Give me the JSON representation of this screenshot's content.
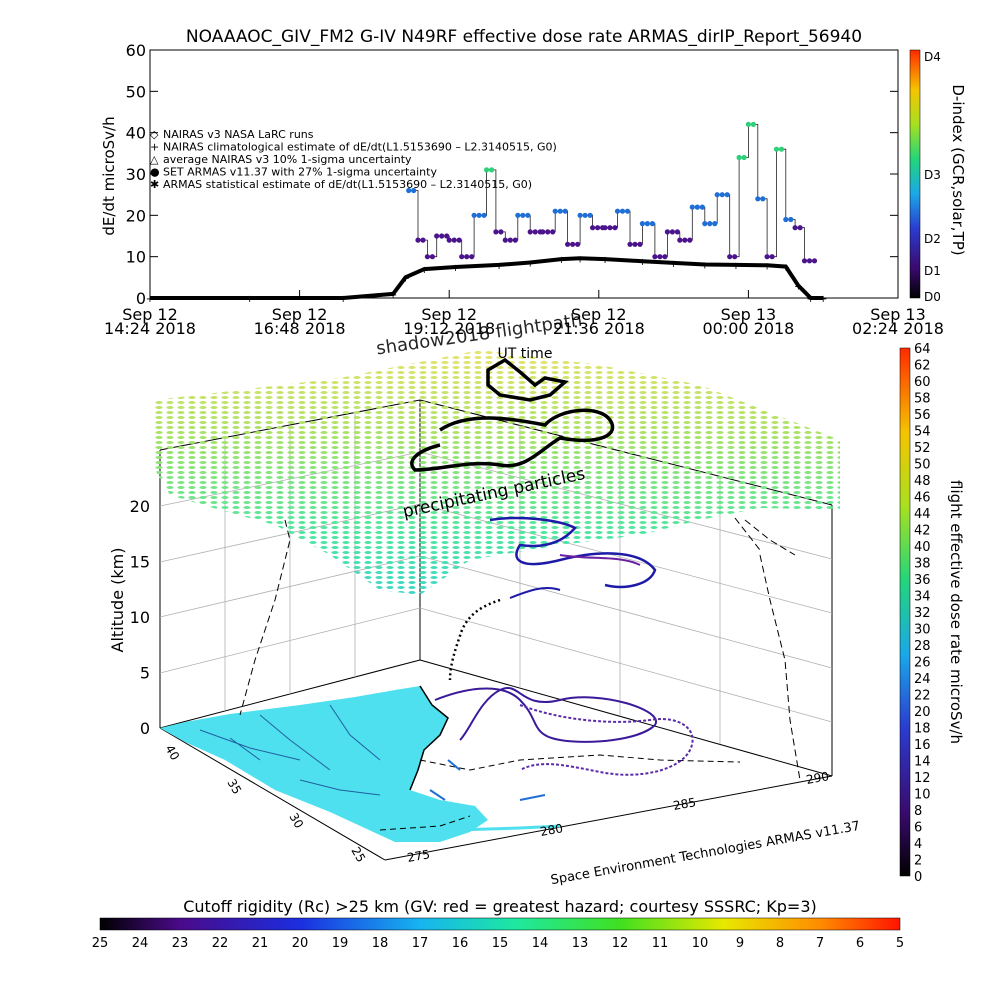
{
  "colors": {
    "trace_black": "#000000",
    "armas_blue": "#1f6fd6",
    "armas_purple": "#4b148c",
    "grid": "#b0b0b0",
    "land": "#4ee0ee"
  },
  "chart_data": [
    {
      "type": "line",
      "title": "NOAAAOC_GIV_FM2 G-IV    N49RF   effective dose rate ARMAS_dirIP_Report_56940",
      "ylabel": "dE/dt microSv/h",
      "xlabel": "",
      "ylim": [
        0,
        60
      ],
      "yticks": [
        "0",
        "10",
        "20",
        "30",
        "40",
        "50",
        "60"
      ],
      "xticks": [
        {
          "l1": "Sep 12",
          "l2": "14:24 2018"
        },
        {
          "l1": "Sep 12",
          "l2": "16:48 2018"
        },
        {
          "l1": "Sep 12",
          "l2": "19:12 2018"
        },
        {
          "l1": "Sep 12",
          "l2": "21:36 2018"
        },
        {
          "l1": "Sep 13",
          "l2": "00:00 2018"
        },
        {
          "l1": "Sep 13",
          "l2": "02:24 2018"
        }
      ],
      "legend": [
        {
          "symbol": "◇",
          "label": "NAIRAS v3 NASA LaRC runs"
        },
        {
          "symbol": "+",
          "label": "NAIRAS climatological estimate of dE/dt(L1.5153690 – L2.3140515, G0)"
        },
        {
          "symbol": "△",
          "label": "average NAIRAS v3 10% 1-sigma uncertainty"
        },
        {
          "symbol": "●",
          "label": "SET ARMAS v11.37 with 27% 1-sigma uncertainty"
        },
        {
          "symbol": "✱",
          "label": "ARMAS statistical estimate of dE/dt(L1.5153690 – L2.3140515, G0)"
        }
      ],
      "colorbar": {
        "label": "D-index (GCR,solar,TP)",
        "ticks": [
          "D4",
          "D3",
          "D2",
          "D1",
          "D0"
        ]
      },
      "series": [
        {
          "name": "NAIRAS climatological estimate of dE/dt(L1.5153690 – L2.3140515, G0)",
          "x_hours": [
            14.4,
            16.0,
            17.5,
            18.3,
            18.5,
            18.8,
            19.3,
            20.0,
            20.5,
            21.0,
            21.3,
            21.7,
            22.3,
            22.8,
            23.3,
            23.8,
            24.3,
            24.6,
            24.8,
            25.0,
            25.2
          ],
          "y": [
            0,
            0,
            0,
            1,
            5,
            7,
            7.5,
            8,
            8.6,
            9.4,
            9.6,
            9.4,
            8.9,
            8.5,
            8.1,
            8.0,
            7.9,
            7.6,
            3,
            0,
            0
          ]
        },
        {
          "name": "SET ARMAS v11.37 with 27% 1-sigma uncertainty",
          "x_hours": [
            18.55,
            18.7,
            18.85,
            19.0,
            19.2,
            19.4,
            19.6,
            19.8,
            19.95,
            20.1,
            20.3,
            20.5,
            20.7,
            20.9,
            21.1,
            21.3,
            21.5,
            21.7,
            21.9,
            22.1,
            22.3,
            22.5,
            22.7,
            22.9,
            23.1,
            23.3,
            23.5,
            23.7,
            23.85,
            24.0,
            24.15,
            24.3,
            24.45,
            24.6,
            24.75,
            24.9
          ],
          "y": [
            26,
            14,
            10,
            15,
            14,
            10,
            20,
            31,
            16,
            14,
            20,
            16,
            16,
            21,
            13,
            20,
            17,
            17,
            21,
            13,
            18,
            10,
            16,
            14,
            22,
            18,
            25,
            10,
            34,
            42,
            24,
            10,
            36,
            19,
            17,
            9
          ]
        }
      ]
    },
    {
      "type": "scatter",
      "title": "shadow2018 flightpath",
      "zlabel": "Altitude (km)",
      "zticks": [
        "0",
        "5",
        "10",
        "15",
        "20"
      ],
      "yticks_lat": [
        "40",
        "35",
        "30",
        "25"
      ],
      "xticks_lon": [
        "275",
        "280",
        "285",
        "290"
      ],
      "annotations": {
        "ut_time": "UT time",
        "precipitating": "precipitating particles",
        "credit": "Space Environment Technologies ARMAS v11.37"
      },
      "colorbar_dose": {
        "label": "flight effective dose rate microSv/h",
        "ticks": [
          "0",
          "2",
          "4",
          "6",
          "8",
          "10",
          "12",
          "14",
          "16",
          "18",
          "20",
          "22",
          "24",
          "26",
          "28",
          "30",
          "32",
          "34",
          "36",
          "38",
          "40",
          "42",
          "44",
          "46",
          "48",
          "50",
          "52",
          "54",
          "56",
          "58",
          "60",
          "62",
          "64"
        ]
      },
      "colorbar_rc": {
        "label": "Cutoff rigidity (Rc) >25 km (GV: red = greatest hazard; courtesy SSSRC; Kp=3)",
        "ticks": [
          "25",
          "24",
          "23",
          "22",
          "21",
          "20",
          "19",
          "18",
          "17",
          "16",
          "15",
          "14",
          "13",
          "12",
          "11",
          "10",
          "9",
          "8",
          "7",
          "6",
          "5"
        ]
      }
    }
  ]
}
